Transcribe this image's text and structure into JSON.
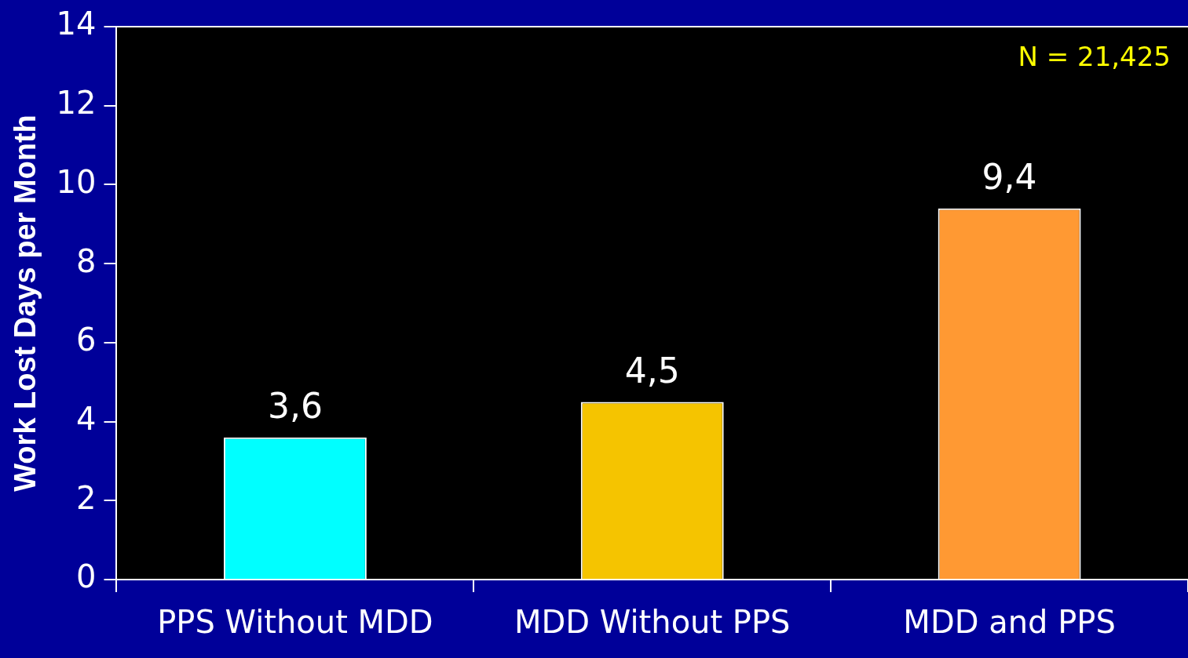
{
  "chart_data": {
    "type": "bar",
    "ylabel": "Work Lost Days per Month",
    "categories": [
      "PPS Without MDD",
      "MDD Without PPS",
      "MDD and PPS"
    ],
    "values": [
      3.6,
      4.5,
      9.4
    ],
    "colors": [
      "#00ffff",
      "#f5c400",
      "#ff9933"
    ],
    "value_labels": [
      "3,6",
      "4,5",
      "9,4"
    ],
    "ylim": [
      0,
      14
    ],
    "yticks": [
      0,
      2,
      4,
      6,
      8,
      10,
      12,
      14
    ],
    "grid": false,
    "legend": false,
    "annotations": [
      "N = 21,425"
    ]
  }
}
